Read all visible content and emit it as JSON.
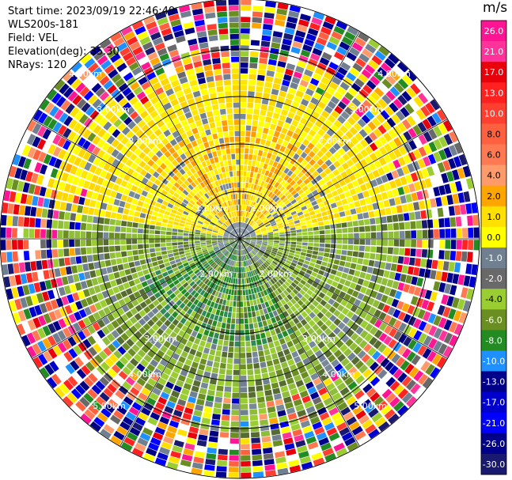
{
  "info": {
    "start_time": "Start time: 2023/09/19 22:46:49",
    "instrument": "WLS200s-181",
    "field": "Field: VEL",
    "elevation": "Elevation(deg): 35.30",
    "nrays": "NRays: 120"
  },
  "colorbar": {
    "unit": "m/s",
    "ticks": [
      "26.0",
      "21.0",
      "17.0",
      "13.0",
      "10.0",
      "8.0",
      "6.0",
      "4.0",
      "2.0",
      "1.0",
      "0.0",
      "-1.0",
      "-2.0",
      "-4.0",
      "-6.0",
      "-8.0",
      "-10.0",
      "-13.0",
      "-17.0",
      "-21.0",
      "-26.0",
      "-30.0"
    ],
    "colors": [
      "#ff1493",
      "#ff3399",
      "#e8000b",
      "#ff2020",
      "#ff4030",
      "#ff6040",
      "#ff7a52",
      "#ff9a6a",
      "#ffa500",
      "#ffe000",
      "#ffff00",
      "#708090",
      "#696969",
      "#9acd32",
      "#6b8e23",
      "#228b22",
      "#1e90ff",
      "#00008b",
      "#0000cd",
      "#0000ff",
      "#00008b",
      "#191970",
      "#000080"
    ]
  },
  "chart_data": {
    "type": "ppi",
    "field": "VEL",
    "unit": "m/s",
    "nrays": 120,
    "elevation_deg": 35.3,
    "ring_labels": [
      "1.00km",
      "1.00km",
      "2.00km",
      "2.00km",
      "2.00km",
      "2.00km",
      "3.00km",
      "3.00km",
      "3.00km",
      "3.00km",
      "4.00km",
      "4.00km",
      "4.00km",
      "4.00km",
      "5.00km",
      "5.00km",
      "5.00km",
      "5.00km"
    ],
    "value_range": [
      -30.0,
      26.0
    ]
  }
}
